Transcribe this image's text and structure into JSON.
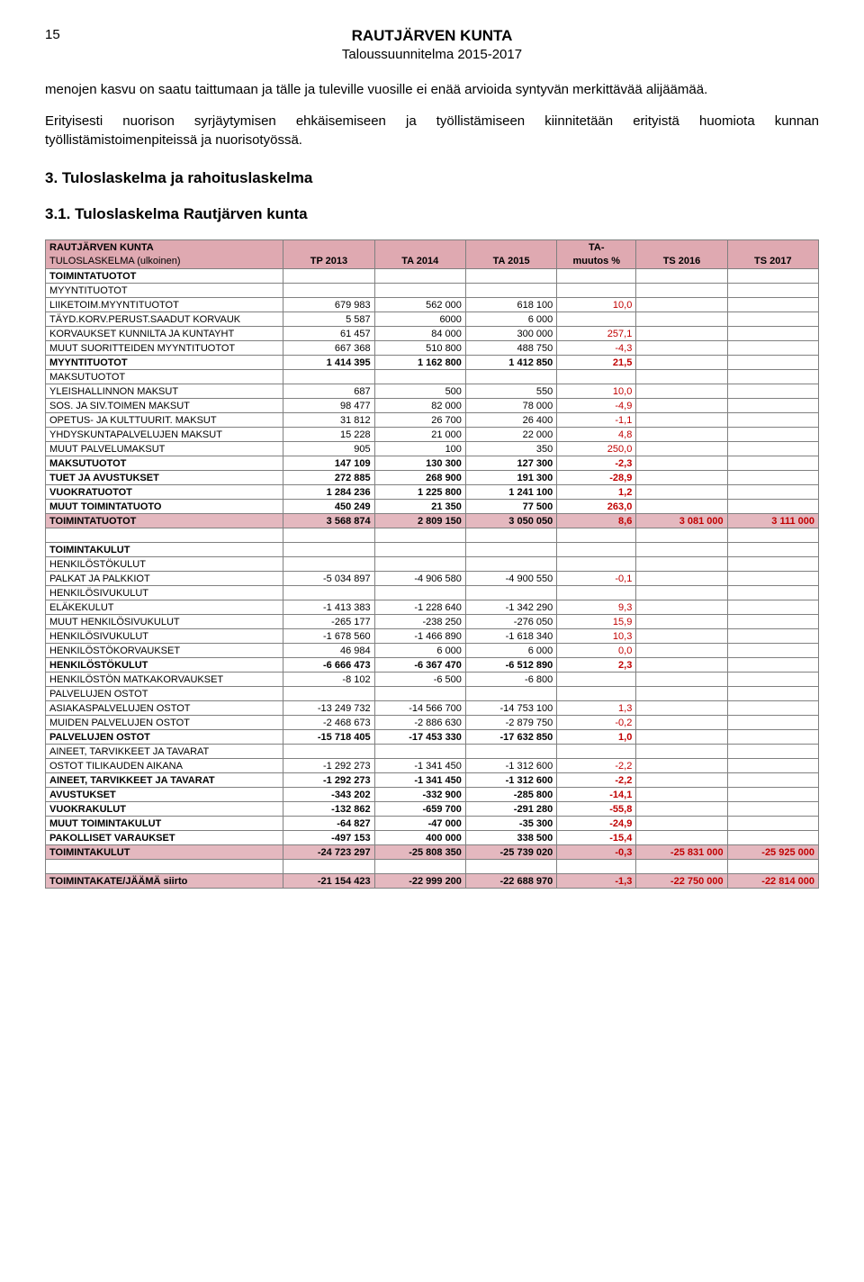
{
  "page_number": "15",
  "header": {
    "title": "RAUTJÄRVEN KUNTA",
    "subtitle": "Taloussuunnitelma 2015-2017"
  },
  "paragraphs": {
    "p1": "menojen kasvu on saatu taittumaan ja tälle ja tuleville vuosille ei enää arvioida syntyvän merkittävää alijäämää.",
    "p2": "Erityisesti nuorison syrjäytymisen ehkäisemiseen ja työllistämiseen kiinnitetään erityistä huomiota kunnan työllistämistoimenpiteissä ja nuorisotyössä."
  },
  "headings": {
    "h3": "3.    Tuloslaskelma ja rahoituslaskelma",
    "h4": "3.1.  Tuloslaskelma Rautjärven kunta"
  },
  "table": {
    "title_row": {
      "c1": "RAUTJÄRVEN KUNTA",
      "c5": "TA-"
    },
    "header_row": {
      "c1": "TULOSLASKELMA (ulkoinen)",
      "c2": "TP 2013",
      "c3": "TA 2014",
      "c4": "TA 2015",
      "c5": "muutos %",
      "c6": "TS 2016",
      "c7": "TS 2017"
    },
    "colors": {
      "title_bg": "#dfa9b1",
      "highlight_bg": "#e4b8bf",
      "red_text": "#c00000",
      "border": "#808080"
    },
    "rows": [
      {
        "l": "TOIMINTATUOTOT",
        "v": [
          "",
          "",
          "",
          "",
          "",
          ""
        ],
        "b": true
      },
      {
        "l": "MYYNTITUOTOT",
        "v": [
          "",
          "",
          "",
          "",
          "",
          ""
        ]
      },
      {
        "l": "LIIKETOIM.MYYNTITUOTOT",
        "v": [
          "679 983",
          "562 000",
          "618 100",
          "10,0",
          "",
          ""
        ],
        "pr": true
      },
      {
        "l": "TÄYD.KORV.PERUST.SAADUT KORVAUK",
        "v": [
          "5 587",
          "6000",
          "6 000",
          "",
          "",
          ""
        ]
      },
      {
        "l": "KORVAUKSET KUNNILTA JA KUNTAYHT",
        "v": [
          "61 457",
          "84 000",
          "300 000",
          "257,1",
          "",
          ""
        ],
        "pr": true
      },
      {
        "l": "MUUT SUORITTEIDEN MYYNTITUOTOT",
        "v": [
          "667 368",
          "510 800",
          "488 750",
          "-4,3",
          "",
          ""
        ],
        "pr": true
      },
      {
        "l": "MYYNTITUOTOT",
        "v": [
          "1 414 395",
          "1 162 800",
          "1 412 850",
          "21,5",
          "",
          ""
        ],
        "b": true,
        "pr": true
      },
      {
        "l": "MAKSUTUOTOT",
        "v": [
          "",
          "",
          "",
          "",
          "",
          ""
        ]
      },
      {
        "l": "YLEISHALLINNON MAKSUT",
        "v": [
          "687",
          "500",
          "550",
          "10,0",
          "",
          ""
        ],
        "pr": true
      },
      {
        "l": "SOS. JA SIV.TOIMEN MAKSUT",
        "v": [
          "98 477",
          "82 000",
          "78 000",
          "-4,9",
          "",
          ""
        ],
        "pr": true
      },
      {
        "l": "OPETUS- JA KULTTUURIT. MAKSUT",
        "v": [
          "31 812",
          "26 700",
          "26 400",
          "-1,1",
          "",
          ""
        ],
        "pr": true
      },
      {
        "l": "YHDYSKUNTAPALVELUJEN MAKSUT",
        "v": [
          "15 228",
          "21 000",
          "22 000",
          "4,8",
          "",
          ""
        ],
        "pr": true
      },
      {
        "l": "MUUT PALVELUMAKSUT",
        "v": [
          "905",
          "100",
          "350",
          "250,0",
          "",
          ""
        ],
        "pr": true
      },
      {
        "l": "MAKSUTUOTOT",
        "v": [
          "147 109",
          "130 300",
          "127 300",
          "-2,3",
          "",
          ""
        ],
        "b": true,
        "pr": true
      },
      {
        "l": "TUET JA AVUSTUKSET",
        "v": [
          "272 885",
          "268 900",
          "191 300",
          "-28,9",
          "",
          ""
        ],
        "b": true,
        "pr": true
      },
      {
        "l": "VUOKRATUOTOT",
        "v": [
          "1 284 236",
          "1 225 800",
          "1 241 100",
          "1,2",
          "",
          ""
        ],
        "b": true,
        "pr": true
      },
      {
        "l": "MUUT TOIMINTATUOTO",
        "v": [
          "450 249",
          "21 350",
          "77 500",
          "263,0",
          "",
          ""
        ],
        "b": true,
        "pr": true
      },
      {
        "l": "TOIMINTATUOTOT",
        "v": [
          "3 568 874",
          "2 809 150",
          "3 050 050",
          "8,6",
          "3 081 000",
          "3 111 000"
        ],
        "b": true,
        "pr": true,
        "hl": true,
        "tr": true
      },
      {
        "l": "",
        "v": [
          "",
          "",
          "",
          "",
          "",
          ""
        ]
      },
      {
        "l": "TOIMINTAKULUT",
        "v": [
          "",
          "",
          "",
          "",
          "",
          ""
        ],
        "b": true
      },
      {
        "l": "HENKILÖSTÖKULUT",
        "v": [
          "",
          "",
          "",
          "",
          "",
          ""
        ]
      },
      {
        "l": "PALKAT JA PALKKIOT",
        "v": [
          "-5 034 897",
          "-4 906 580",
          "-4 900 550",
          "-0,1",
          "",
          ""
        ],
        "pr": true
      },
      {
        "l": "HENKILÖSIVUKULUT",
        "v": [
          "",
          "",
          "",
          "",
          "",
          ""
        ]
      },
      {
        "l": "ELÄKEKULUT",
        "v": [
          "-1 413 383",
          "-1 228 640",
          "-1 342 290",
          "9,3",
          "",
          ""
        ],
        "pr": true
      },
      {
        "l": "MUUT HENKILÖSIVUKULUT",
        "v": [
          "-265 177",
          "-238 250",
          "-276 050",
          "15,9",
          "",
          ""
        ],
        "pr": true
      },
      {
        "l": "HENKILÖSIVUKULUT",
        "v": [
          "-1 678 560",
          "-1 466 890",
          "-1 618 340",
          "10,3",
          "",
          ""
        ],
        "pr": true
      },
      {
        "l": "HENKILÖSTÖKORVAUKSET",
        "v": [
          "46 984",
          "6 000",
          "6 000",
          "0,0",
          "",
          ""
        ],
        "pr": true
      },
      {
        "l": "HENKILÖSTÖKULUT",
        "v": [
          "-6 666 473",
          "-6 367 470",
          "-6 512 890",
          "2,3",
          "",
          ""
        ],
        "b": true,
        "pr": true
      },
      {
        "l": "HENKILÖSTÖN MATKAKORVAUKSET",
        "v": [
          "-8 102",
          "-6 500",
          "-6 800",
          "",
          "",
          ""
        ]
      },
      {
        "l": "PALVELUJEN OSTOT",
        "v": [
          "",
          "",
          "",
          "",
          "",
          ""
        ]
      },
      {
        "l": "ASIAKASPALVELUJEN OSTOT",
        "v": [
          "-13 249 732",
          "-14 566 700",
          "-14 753 100",
          "1,3",
          "",
          ""
        ],
        "pr": true
      },
      {
        "l": "MUIDEN PALVELUJEN OSTOT",
        "v": [
          "-2 468 673",
          "-2 886 630",
          "-2 879 750",
          "-0,2",
          "",
          ""
        ],
        "pr": true
      },
      {
        "l": "PALVELUJEN OSTOT",
        "v": [
          "-15 718 405",
          "-17 453 330",
          "-17 632 850",
          "1,0",
          "",
          ""
        ],
        "b": true,
        "pr": true
      },
      {
        "l": "AINEET, TARVIKKEET JA TAVARAT",
        "v": [
          "",
          "",
          "",
          "",
          "",
          ""
        ]
      },
      {
        "l": "OSTOT TILIKAUDEN AIKANA",
        "v": [
          "-1 292 273",
          "-1 341 450",
          "-1 312 600",
          "-2,2",
          "",
          ""
        ],
        "pr": true
      },
      {
        "l": "AINEET, TARVIKKEET JA TAVARAT",
        "v": [
          "-1 292 273",
          "-1 341 450",
          "-1 312 600",
          "-2,2",
          "",
          ""
        ],
        "b": true,
        "pr": true
      },
      {
        "l": "AVUSTUKSET",
        "v": [
          "-343 202",
          "-332 900",
          "-285 800",
          "-14,1",
          "",
          ""
        ],
        "b": true,
        "pr": true
      },
      {
        "l": "VUOKRAKULUT",
        "v": [
          "-132 862",
          "-659 700",
          "-291 280",
          "-55,8",
          "",
          ""
        ],
        "b": true,
        "pr": true
      },
      {
        "l": "MUUT TOIMINTAKULUT",
        "v": [
          "-64 827",
          "-47 000",
          "-35 300",
          "-24,9",
          "",
          ""
        ],
        "b": true,
        "pr": true
      },
      {
        "l": "PAKOLLISET VARAUKSET",
        "v": [
          "-497 153",
          "400 000",
          "338 500",
          "-15,4",
          "",
          ""
        ],
        "b": true,
        "pr": true
      },
      {
        "l": "TOIMINTAKULUT",
        "v": [
          "-24 723 297",
          "-25 808 350",
          "-25 739 020",
          "-0,3",
          "-25 831 000",
          "-25 925 000"
        ],
        "b": true,
        "pr": true,
        "hl": true,
        "tr": true
      },
      {
        "l": "",
        "v": [
          "",
          "",
          "",
          "",
          "",
          ""
        ]
      },
      {
        "l": "TOIMINTAKATE/JÄÄMÄ siirto",
        "v": [
          "-21 154 423",
          "-22 999 200",
          "-22 688 970",
          "-1,3",
          "-22 750 000",
          "-22 814 000"
        ],
        "b": true,
        "pr": true,
        "hl": true,
        "tr": true
      }
    ]
  }
}
